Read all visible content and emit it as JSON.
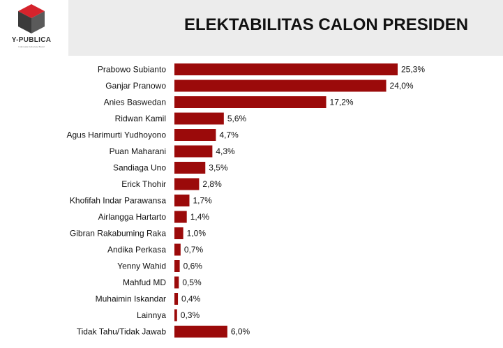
{
  "header": {
    "title": "ELEKTABILITAS CALON PRESIDEN",
    "logo_name": "Y-PUBLICA",
    "logo_tagline": "Indonesian Advocacy Board"
  },
  "colors": {
    "bar": "#9b0a0a",
    "logo_red": "#d5232c",
    "logo_dark": "#3a3a3a"
  },
  "chart_data": {
    "type": "bar",
    "orientation": "horizontal",
    "title": "ELEKTABILITAS CALON PRESIDEN",
    "categories": [
      "Prabowo Subianto",
      "Ganjar Pranowo",
      "Anies Baswedan",
      "Ridwan Kamil",
      "Agus Harimurti Yudhoyono",
      "Puan Maharani",
      "Sandiaga Uno",
      "Erick Thohir",
      "Khofifah Indar Parawansa",
      "Airlangga Hartarto",
      "Gibran Rakabuming Raka",
      "Andika Perkasa",
      "Yenny Wahid",
      "Mahfud MD",
      "Muhaimin Iskandar",
      "Lainnya",
      "Tidak Tahu/Tidak Jawab"
    ],
    "values": [
      25.3,
      24.0,
      17.2,
      5.6,
      4.7,
      4.3,
      3.5,
      2.8,
      1.7,
      1.4,
      1.0,
      0.7,
      0.6,
      0.5,
      0.4,
      0.3,
      6.0
    ],
    "value_labels": [
      "25,3%",
      "24,0%",
      "17,2%",
      "5,6%",
      "4,7%",
      "4,3%",
      "3,5%",
      "2,8%",
      "1,7%",
      "1,4%",
      "1,0%",
      "0,7%",
      "0,6%",
      "0,5%",
      "0,4%",
      "0,3%",
      "6,0%"
    ],
    "xlim": [
      0,
      25.3
    ],
    "grid": false,
    "legend": "none"
  }
}
